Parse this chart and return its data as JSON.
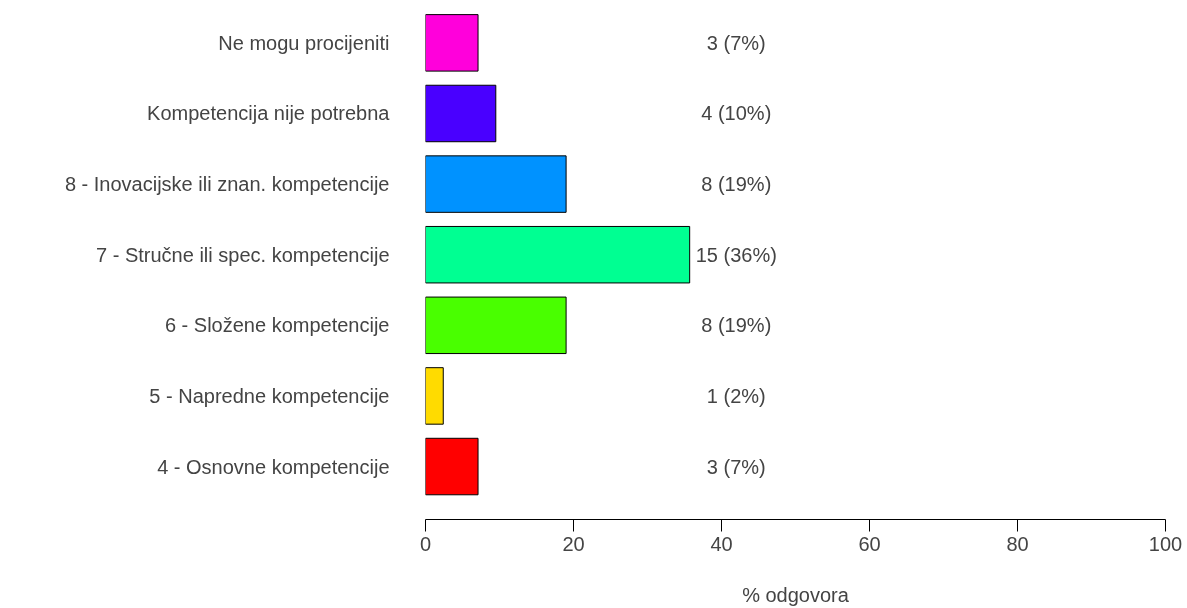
{
  "chart_data": {
    "type": "bar",
    "orientation": "horizontal",
    "xlabel": "% odgovora",
    "categories": [
      "Ne mogu procijeniti",
      "Kompetencija nije potrebna",
      "8 - Inovacijske ili znan. kompetencije",
      "7 - Stručne ili spec. kompetencije",
      "6 - Složene kompetencije",
      "5 - Napredne kompetencije",
      "4 - Osnovne kompetencije"
    ],
    "values": [
      7.1,
      9.5,
      19.0,
      35.7,
      19.0,
      2.4,
      7.1
    ],
    "colors": [
      "#ff00db",
      "#4900ff",
      "#0092ff",
      "#00ff92",
      "#49ff00",
      "#ffdb00",
      "#ff0000"
    ],
    "value_labels": [
      "3 (7%)",
      "4 (10%)",
      "8 (19%)",
      "15 (36%)",
      "8 (19%)",
      "1 (2%)",
      "3 (7%)"
    ],
    "xlim": [
      0,
      100
    ],
    "xticks": [
      0,
      20,
      40,
      60,
      80,
      100
    ]
  }
}
